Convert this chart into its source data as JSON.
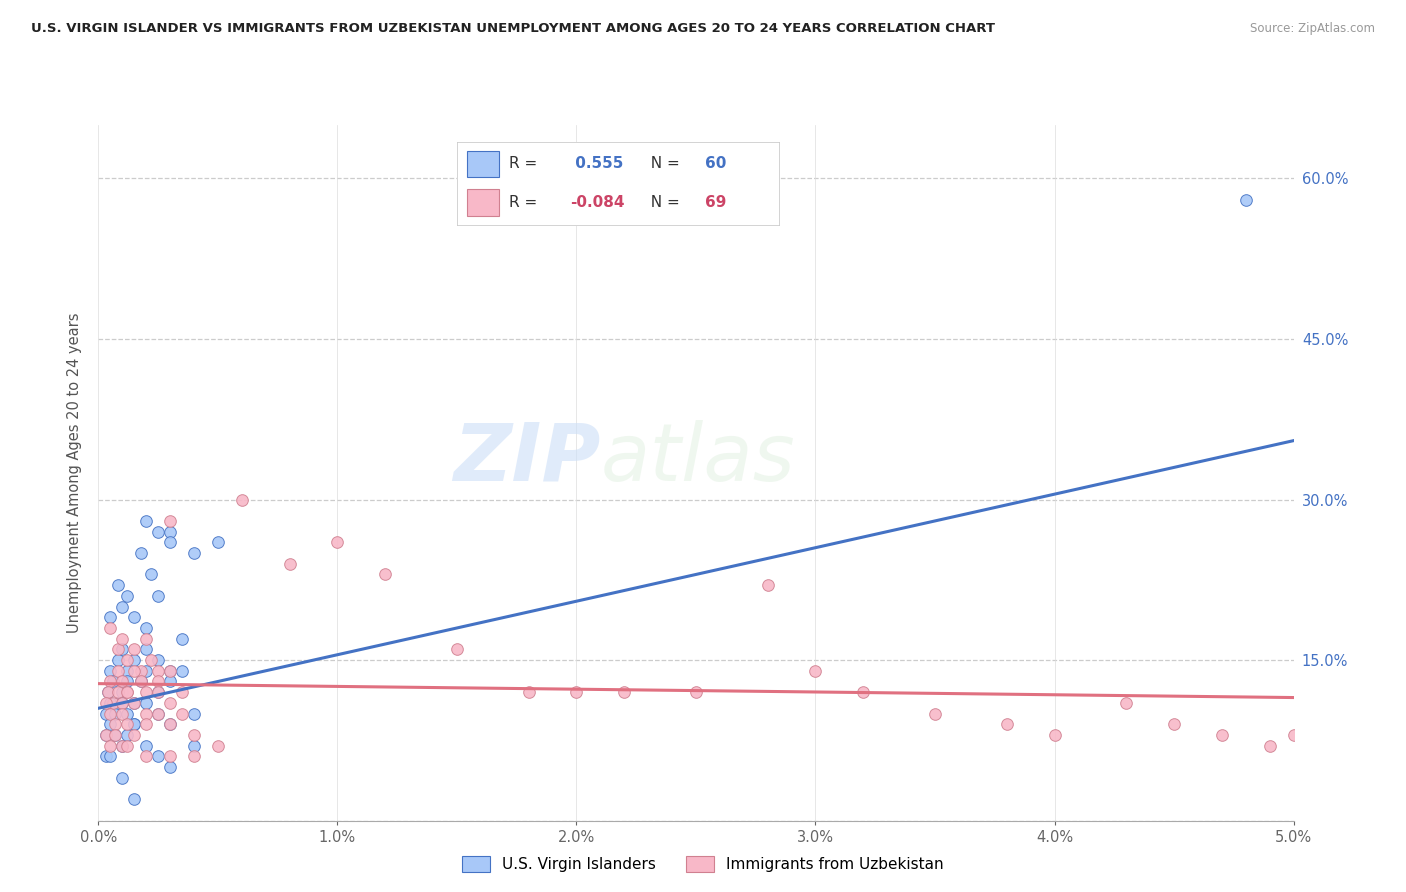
{
  "title": "U.S. VIRGIN ISLANDER VS IMMIGRANTS FROM UZBEKISTAN UNEMPLOYMENT AMONG AGES 20 TO 24 YEARS CORRELATION CHART",
  "source": "Source: ZipAtlas.com",
  "ylabel": "Unemployment Among Ages 20 to 24 years",
  "xlabel": "",
  "blue_R": 0.555,
  "blue_N": 60,
  "pink_R": -0.084,
  "pink_N": 69,
  "blue_label": "U.S. Virgin Islanders",
  "pink_label": "Immigrants from Uzbekistan",
  "xlim": [
    0.0,
    0.05
  ],
  "ylim": [
    0.0,
    0.65
  ],
  "yticks": [
    0.0,
    0.15,
    0.3,
    0.45,
    0.6
  ],
  "ytick_labels": [
    "",
    "15.0%",
    "30.0%",
    "45.0%",
    "60.0%"
  ],
  "xticks": [
    0.0,
    0.01,
    0.02,
    0.03,
    0.04,
    0.05
  ],
  "xtick_labels": [
    "0.0%",
    "1.0%",
    "2.0%",
    "3.0%",
    "4.0%",
    "5.0%"
  ],
  "blue_color": "#a8c8f8",
  "pink_color": "#f8b8c8",
  "blue_line_color": "#4472c4",
  "pink_line_color": "#e07080",
  "watermark_zip": "ZIP",
  "watermark_atlas": "atlas",
  "blue_scatter_x": [
    0.0005,
    0.0008,
    0.001,
    0.0012,
    0.0015,
    0.0018,
    0.002,
    0.0022,
    0.0025,
    0.003,
    0.0005,
    0.0008,
    0.001,
    0.0012,
    0.0015,
    0.0018,
    0.002,
    0.0025,
    0.003,
    0.0035,
    0.0004,
    0.0006,
    0.0008,
    0.001,
    0.0012,
    0.0015,
    0.002,
    0.0025,
    0.003,
    0.0035,
    0.0003,
    0.0005,
    0.0007,
    0.001,
    0.0012,
    0.0015,
    0.002,
    0.0025,
    0.003,
    0.004,
    0.0003,
    0.0005,
    0.0007,
    0.001,
    0.0012,
    0.0015,
    0.002,
    0.0025,
    0.003,
    0.004,
    0.0003,
    0.0005,
    0.001,
    0.0015,
    0.002,
    0.0025,
    0.003,
    0.004,
    0.005,
    0.048
  ],
  "blue_scatter_y": [
    0.19,
    0.22,
    0.2,
    0.21,
    0.19,
    0.25,
    0.18,
    0.23,
    0.21,
    0.27,
    0.14,
    0.15,
    0.16,
    0.14,
    0.15,
    0.13,
    0.16,
    0.15,
    0.14,
    0.17,
    0.12,
    0.13,
    0.11,
    0.12,
    0.13,
    0.11,
    0.14,
    0.12,
    0.13,
    0.14,
    0.1,
    0.11,
    0.1,
    0.11,
    0.1,
    0.09,
    0.11,
    0.1,
    0.09,
    0.1,
    0.08,
    0.09,
    0.08,
    0.07,
    0.08,
    0.09,
    0.07,
    0.06,
    0.05,
    0.07,
    0.06,
    0.06,
    0.04,
    0.02,
    0.28,
    0.27,
    0.26,
    0.25,
    0.26,
    0.58
  ],
  "pink_scatter_x": [
    0.0005,
    0.0008,
    0.001,
    0.0012,
    0.0015,
    0.0018,
    0.002,
    0.0022,
    0.0025,
    0.003,
    0.0005,
    0.0008,
    0.001,
    0.0012,
    0.0015,
    0.0018,
    0.002,
    0.0025,
    0.003,
    0.0035,
    0.0004,
    0.0006,
    0.0008,
    0.001,
    0.0012,
    0.0015,
    0.002,
    0.0025,
    0.003,
    0.0035,
    0.0003,
    0.0005,
    0.0007,
    0.001,
    0.0012,
    0.0015,
    0.002,
    0.0025,
    0.003,
    0.004,
    0.0003,
    0.0005,
    0.0007,
    0.001,
    0.0012,
    0.002,
    0.003,
    0.004,
    0.005,
    0.006,
    0.008,
    0.01,
    0.012,
    0.015,
    0.018,
    0.02,
    0.022,
    0.025,
    0.028,
    0.03,
    0.032,
    0.035,
    0.038,
    0.04,
    0.043,
    0.045,
    0.047,
    0.049,
    0.05
  ],
  "pink_scatter_y": [
    0.18,
    0.16,
    0.17,
    0.15,
    0.16,
    0.14,
    0.17,
    0.15,
    0.14,
    0.28,
    0.13,
    0.14,
    0.13,
    0.12,
    0.14,
    0.13,
    0.12,
    0.13,
    0.14,
    0.12,
    0.12,
    0.11,
    0.12,
    0.11,
    0.12,
    0.11,
    0.1,
    0.12,
    0.11,
    0.1,
    0.11,
    0.1,
    0.09,
    0.1,
    0.09,
    0.08,
    0.09,
    0.1,
    0.09,
    0.08,
    0.08,
    0.07,
    0.08,
    0.07,
    0.07,
    0.06,
    0.06,
    0.06,
    0.07,
    0.3,
    0.24,
    0.26,
    0.23,
    0.16,
    0.12,
    0.12,
    0.12,
    0.12,
    0.22,
    0.14,
    0.12,
    0.1,
    0.09,
    0.08,
    0.11,
    0.09,
    0.08,
    0.07,
    0.08
  ]
}
